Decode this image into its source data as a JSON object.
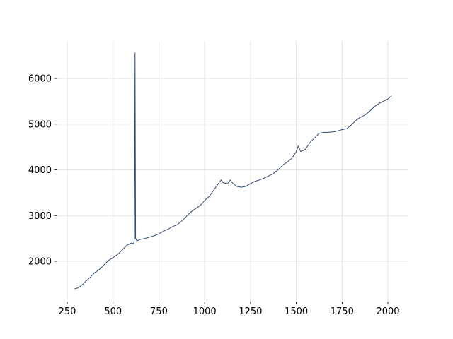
{
  "chart_data": {
    "type": "line",
    "x": [
      290,
      310,
      330,
      350,
      375,
      400,
      425,
      450,
      475,
      500,
      525,
      550,
      575,
      600,
      612,
      617,
      620,
      623,
      630,
      650,
      675,
      700,
      725,
      750,
      775,
      800,
      825,
      850,
      875,
      900,
      925,
      950,
      975,
      1000,
      1025,
      1050,
      1075,
      1090,
      1100,
      1125,
      1140,
      1150,
      1175,
      1200,
      1225,
      1250,
      1275,
      1300,
      1325,
      1350,
      1375,
      1400,
      1425,
      1450,
      1475,
      1500,
      1510,
      1525,
      1550,
      1575,
      1600,
      1625,
      1650,
      1675,
      1700,
      1725,
      1750,
      1775,
      1800,
      1825,
      1850,
      1875,
      1900,
      1925,
      1950,
      1975,
      2000,
      2020
    ],
    "series": [
      {
        "color": "#2e4a6e",
        "values": [
          1400,
          1420,
          1480,
          1560,
          1650,
          1750,
          1820,
          1920,
          2020,
          2080,
          2150,
          2250,
          2350,
          2400,
          2380,
          2500,
          6560,
          2500,
          2450,
          2480,
          2500,
          2530,
          2560,
          2600,
          2660,
          2700,
          2760,
          2800,
          2880,
          2980,
          3080,
          3150,
          3220,
          3330,
          3420,
          3560,
          3700,
          3780,
          3720,
          3700,
          3780,
          3720,
          3640,
          3620,
          3640,
          3700,
          3750,
          3780,
          3820,
          3870,
          3920,
          4000,
          4100,
          4170,
          4250,
          4400,
          4520,
          4400,
          4450,
          4600,
          4700,
          4800,
          4820,
          4820,
          4830,
          4850,
          4880,
          4900,
          4980,
          5080,
          5150,
          5200,
          5280,
          5380,
          5450,
          5500,
          5550,
          5620
        ]
      }
    ],
    "xlim": [
      192,
      2108
    ],
    "ylim": [
      1117,
      6825
    ],
    "xticks": [
      250,
      500,
      750,
      1000,
      1250,
      1500,
      1750,
      2000
    ],
    "yticks": [
      2000,
      3000,
      4000,
      5000,
      6000
    ],
    "grid": true
  }
}
